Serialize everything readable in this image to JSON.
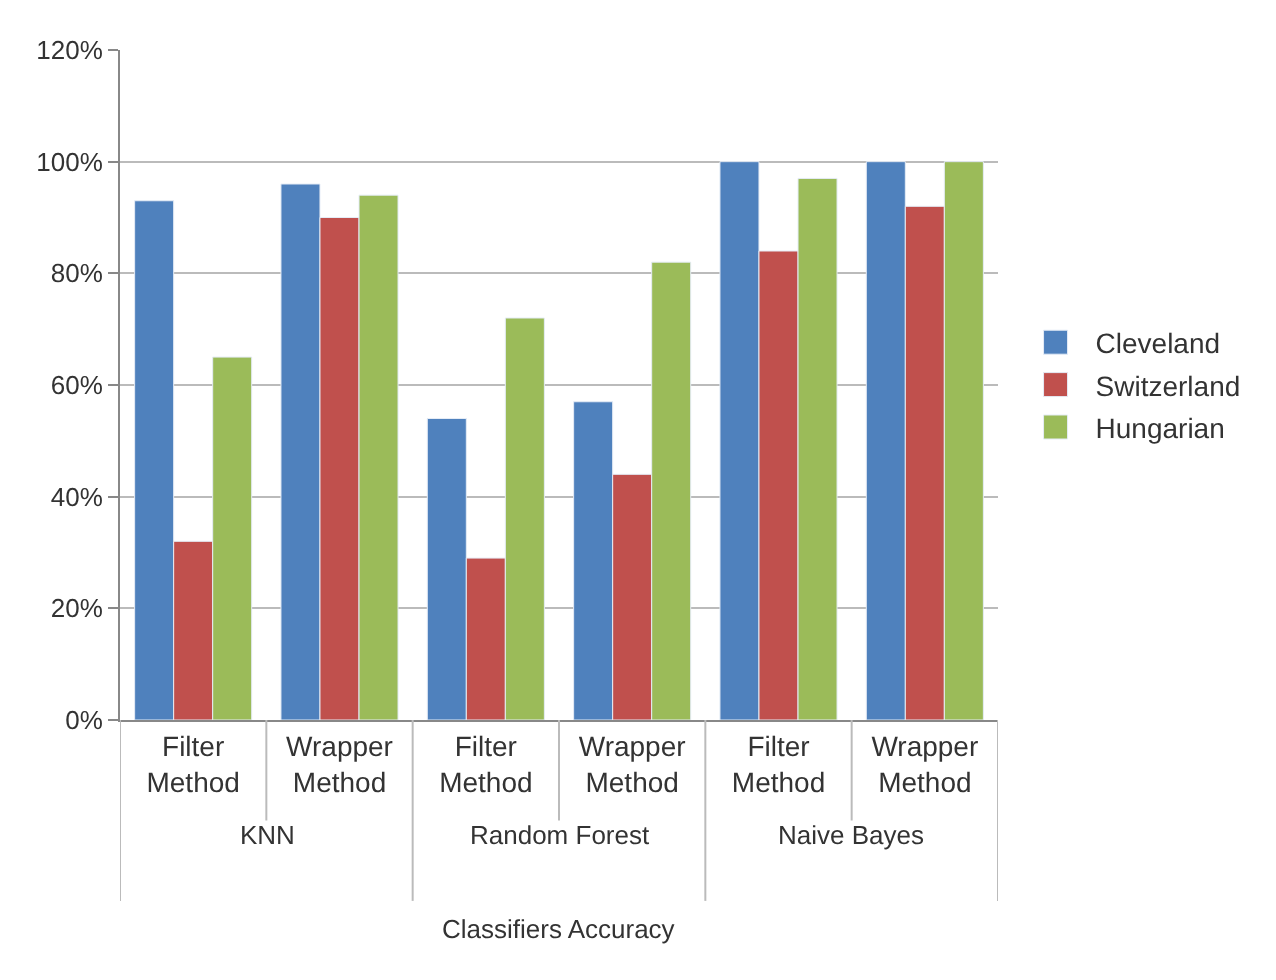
{
  "chart_data": {
    "type": "bar",
    "xlabel": "Classifiers Accuracy",
    "categories": [
      "Filter Method",
      "Wrapper Method",
      "Filter Method",
      "Wrapper Method",
      "Filter Method",
      "Wrapper Method"
    ],
    "annotations": [
      "KNN",
      "Random Forest",
      "Naive Bayes"
    ],
    "series": [
      {
        "name": "Cleveland",
        "color": "#4f81bd",
        "values": [
          93,
          96,
          54,
          57,
          100,
          100
        ]
      },
      {
        "name": "Switzerland",
        "color": "#c0504d",
        "values": [
          32,
          90,
          29,
          44,
          84,
          92
        ]
      },
      {
        "name": "Hungarian",
        "color": "#9bbb59",
        "values": [
          65,
          94,
          72,
          82,
          97,
          100
        ]
      }
    ],
    "ylim": [
      0,
      120
    ],
    "yticks": [
      {
        "value": 0,
        "label": "0%"
      },
      {
        "value": 20,
        "label": "20%"
      },
      {
        "value": 40,
        "label": "40%"
      },
      {
        "value": 60,
        "label": "60%"
      },
      {
        "value": 80,
        "label": "80%"
      },
      {
        "value": 100,
        "label": "100%"
      },
      {
        "value": 120,
        "label": "120%"
      }
    ],
    "grid": "y",
    "legend": "right"
  }
}
